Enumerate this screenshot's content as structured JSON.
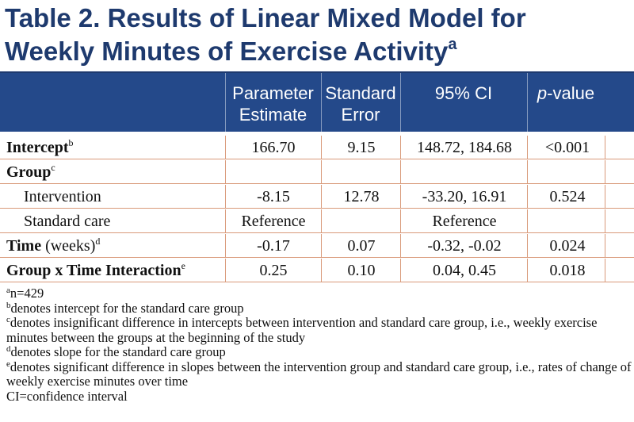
{
  "title": {
    "line1": "Table 2. Results of Linear Mixed Model for",
    "line2": "Weekly Minutes of Exercise Activity",
    "sup": "a"
  },
  "columns": [
    {
      "label": "Parameter\nEstimate"
    },
    {
      "label": "Standard\nError"
    },
    {
      "label": "95% CI"
    },
    {
      "label_italic": "p",
      "label_rest": "-value"
    }
  ],
  "rows": [
    {
      "label": "Intercept",
      "sup": "b",
      "bold": true,
      "indent": false,
      "estimate": "166.70",
      "se": "9.15",
      "ci": "148.72, 184.68",
      "p": "<0.001"
    },
    {
      "label": "Group",
      "sup": "c",
      "bold": true,
      "indent": false,
      "estimate": "",
      "se": "",
      "ci": "",
      "p": ""
    },
    {
      "label": "Intervention",
      "sup": "",
      "bold": false,
      "indent": true,
      "estimate": "-8.15",
      "se": "12.78",
      "ci": "-33.20, 16.91",
      "p": "0.524"
    },
    {
      "label": "Standard care",
      "sup": "",
      "bold": false,
      "indent": true,
      "estimate": "Reference",
      "se": "",
      "ci": "Reference",
      "p": ""
    },
    {
      "label": "Time",
      "label_suffix": " (weeks)",
      "sup": "d",
      "bold": true,
      "indent": false,
      "estimate": "-0.17",
      "se": "0.07",
      "ci": "-0.32, -0.02",
      "p": "0.024"
    },
    {
      "label": "Group x Time Interaction",
      "sup": "e",
      "bold": true,
      "indent": false,
      "estimate": "0.25",
      "se": "0.10",
      "ci": "0.04, 0.45",
      "p": "0.018"
    }
  ],
  "footnotes": [
    {
      "sup": "a",
      "text": "n=429"
    },
    {
      "sup": "b",
      "text": "denotes intercept for the standard care group"
    },
    {
      "sup": "c",
      "text": "denotes insignificant difference in intercepts between intervention and standard care group, i.e., weekly exercise minutes between the groups at the beginning of the study"
    },
    {
      "sup": "d",
      "text": "denotes slope for the standard care group"
    },
    {
      "sup": "e",
      "text": "denotes significant difference in slopes between the intervention group and standard care group, i.e., rates of change of weekly exercise minutes over time"
    },
    {
      "sup": "",
      "text": "CI=confidence interval"
    }
  ],
  "colors": {
    "title": "#1e3a6e",
    "header_bg": "#24498a",
    "rule": "#d99a7a"
  }
}
